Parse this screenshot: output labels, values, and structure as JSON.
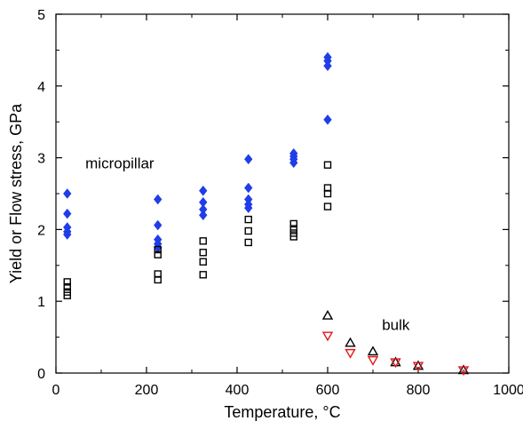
{
  "chart_data": {
    "type": "scatter",
    "title": "",
    "xlabel": "Temperature, °C",
    "ylabel": "Yield or Flow stress, GPa",
    "xlim": [
      0,
      1000
    ],
    "ylim": [
      0,
      5
    ],
    "xticks": [
      0,
      200,
      400,
      600,
      800,
      1000
    ],
    "yticks": [
      0,
      1,
      2,
      3,
      4,
      5
    ],
    "xtick_labels": [
      "0",
      "200",
      "400",
      "600",
      "800",
      "1000"
    ],
    "ytick_labels": [
      "0",
      "1",
      "2",
      "3",
      "4",
      "5"
    ],
    "grid": false,
    "legend": "none",
    "annotations": [
      {
        "text": "micropillar",
        "x": 65,
        "y": 2.85
      },
      {
        "text": "bulk",
        "x": 720,
        "y": 0.6
      }
    ],
    "series": [
      {
        "marker": "filled-diamond",
        "color": "#1f3ee8",
        "points": [
          [
            25,
            2.5
          ],
          [
            25,
            2.22
          ],
          [
            25,
            2.03
          ],
          [
            25,
            1.97
          ],
          [
            25,
            1.93
          ],
          [
            225,
            2.42
          ],
          [
            225,
            2.06
          ],
          [
            225,
            1.86
          ],
          [
            225,
            1.8
          ],
          [
            225,
            1.75
          ],
          [
            325,
            2.54
          ],
          [
            325,
            2.38
          ],
          [
            325,
            2.28
          ],
          [
            325,
            2.2
          ],
          [
            425,
            2.98
          ],
          [
            425,
            2.58
          ],
          [
            425,
            2.42
          ],
          [
            425,
            2.35
          ],
          [
            425,
            2.3
          ],
          [
            525,
            3.06
          ],
          [
            525,
            3.02
          ],
          [
            525,
            2.98
          ],
          [
            525,
            2.93
          ],
          [
            600,
            4.4
          ],
          [
            600,
            4.35
          ],
          [
            600,
            4.28
          ],
          [
            600,
            3.53
          ]
        ]
      },
      {
        "marker": "open-square",
        "color": "#000000",
        "points": [
          [
            25,
            1.27
          ],
          [
            25,
            1.2
          ],
          [
            25,
            1.13
          ],
          [
            25,
            1.08
          ],
          [
            225,
            1.72
          ],
          [
            225,
            1.65
          ],
          [
            225,
            1.38
          ],
          [
            225,
            1.3
          ],
          [
            325,
            1.84
          ],
          [
            325,
            1.68
          ],
          [
            325,
            1.55
          ],
          [
            325,
            1.37
          ],
          [
            425,
            2.14
          ],
          [
            425,
            1.98
          ],
          [
            425,
            1.82
          ],
          [
            525,
            2.08
          ],
          [
            525,
            2.01
          ],
          [
            525,
            1.95
          ],
          [
            525,
            1.9
          ],
          [
            600,
            2.9
          ],
          [
            600,
            2.58
          ],
          [
            600,
            2.5
          ],
          [
            600,
            2.32
          ]
        ]
      },
      {
        "marker": "open-triangle-up",
        "color": "#000000",
        "points": [
          [
            600,
            0.8
          ],
          [
            650,
            0.42
          ],
          [
            700,
            0.3
          ],
          [
            750,
            0.15
          ],
          [
            800,
            0.1
          ],
          [
            900,
            0.04
          ]
        ]
      },
      {
        "marker": "open-triangle-down",
        "color": "#e01818",
        "points": [
          [
            600,
            0.52
          ],
          [
            650,
            0.28
          ],
          [
            700,
            0.18
          ],
          [
            750,
            0.15
          ],
          [
            800,
            0.1
          ],
          [
            900,
            0.04
          ]
        ]
      }
    ]
  }
}
